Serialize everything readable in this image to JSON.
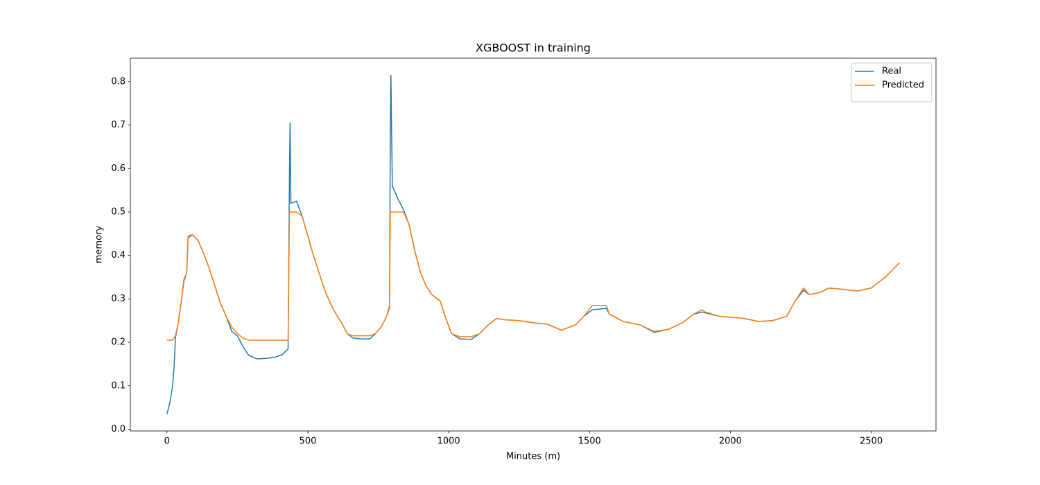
{
  "chart_data": {
    "type": "line",
    "title": "XGBOOST in training",
    "x_label": "Minutes (m)",
    "y_label": "memory",
    "xlim": [
      -130,
      2730
    ],
    "ylim": [
      -0.004,
      0.854
    ],
    "xticks": [
      0,
      500,
      1000,
      1500,
      2000,
      2500
    ],
    "yticks": [
      {
        "value": 0,
        "label": "0.0"
      },
      0.1,
      0.2,
      0.3,
      0.4,
      0.5,
      0.6,
      0.7,
      0.8
    ],
    "grid": false,
    "legend": "upper right",
    "x": [
      0,
      10,
      20,
      25,
      30,
      40,
      50,
      60,
      70,
      75,
      90,
      110,
      130,
      150,
      170,
      190,
      210,
      230,
      250,
      270,
      290,
      320,
      350,
      380,
      410,
      430,
      435,
      437,
      440,
      460,
      480,
      500,
      520,
      540,
      560,
      580,
      600,
      620,
      640,
      660,
      690,
      720,
      740,
      760,
      780,
      790,
      793,
      795,
      800,
      820,
      840,
      860,
      880,
      900,
      920,
      940,
      970,
      990,
      1010,
      1040,
      1080,
      1110,
      1140,
      1170,
      1200,
      1250,
      1300,
      1350,
      1400,
      1450,
      1480,
      1510,
      1560,
      1570,
      1620,
      1680,
      1730,
      1780,
      1830,
      1870,
      1900,
      1910,
      1960,
      2000,
      2050,
      2100,
      2150,
      2200,
      2230,
      2260,
      2280,
      2320,
      2350,
      2400,
      2450,
      2500,
      2550,
      2600
    ],
    "series": [
      {
        "name": "Real",
        "color": "#1f77b4",
        "values": [
          0.035,
          0.06,
          0.1,
          0.14,
          0.21,
          0.245,
          0.29,
          0.34,
          0.36,
          0.44,
          0.448,
          0.435,
          0.405,
          0.37,
          0.33,
          0.29,
          0.26,
          0.225,
          0.215,
          0.19,
          0.17,
          0.162,
          0.163,
          0.165,
          0.172,
          0.185,
          0.6,
          0.705,
          0.52,
          0.525,
          0.49,
          0.445,
          0.4,
          0.36,
          0.32,
          0.29,
          0.265,
          0.245,
          0.22,
          0.21,
          0.208,
          0.208,
          0.22,
          0.235,
          0.26,
          0.28,
          0.7,
          0.815,
          0.56,
          0.53,
          0.505,
          0.47,
          0.41,
          0.36,
          0.33,
          0.31,
          0.295,
          0.255,
          0.22,
          0.208,
          0.207,
          0.22,
          0.24,
          0.255,
          0.252,
          0.25,
          0.245,
          0.242,
          0.228,
          0.24,
          0.26,
          0.275,
          0.278,
          0.265,
          0.248,
          0.24,
          0.223,
          0.23,
          0.245,
          0.265,
          0.27,
          0.268,
          0.26,
          0.258,
          0.255,
          0.248,
          0.25,
          0.26,
          0.295,
          0.32,
          0.31,
          0.315,
          0.325,
          0.322,
          0.318,
          0.325,
          0.35,
          0.383
        ]
      },
      {
        "name": "Predicted",
        "color": "#ff7f0e",
        "values": [
          0.205,
          0.205,
          0.205,
          0.21,
          0.215,
          0.245,
          0.29,
          0.345,
          0.36,
          0.445,
          0.448,
          0.435,
          0.405,
          0.37,
          0.33,
          0.29,
          0.26,
          0.235,
          0.22,
          0.21,
          0.205,
          0.205,
          0.205,
          0.205,
          0.205,
          0.205,
          0.5,
          0.5,
          0.5,
          0.5,
          0.49,
          0.445,
          0.4,
          0.36,
          0.32,
          0.29,
          0.265,
          0.245,
          0.22,
          0.215,
          0.215,
          0.215,
          0.22,
          0.235,
          0.26,
          0.285,
          0.5,
          0.5,
          0.5,
          0.5,
          0.5,
          0.47,
          0.41,
          0.36,
          0.33,
          0.31,
          0.295,
          0.255,
          0.22,
          0.213,
          0.213,
          0.22,
          0.24,
          0.255,
          0.252,
          0.25,
          0.245,
          0.242,
          0.228,
          0.24,
          0.26,
          0.285,
          0.285,
          0.265,
          0.248,
          0.24,
          0.225,
          0.23,
          0.245,
          0.265,
          0.275,
          0.27,
          0.26,
          0.258,
          0.255,
          0.248,
          0.25,
          0.26,
          0.295,
          0.325,
          0.31,
          0.315,
          0.325,
          0.322,
          0.318,
          0.325,
          0.35,
          0.383
        ]
      }
    ]
  }
}
